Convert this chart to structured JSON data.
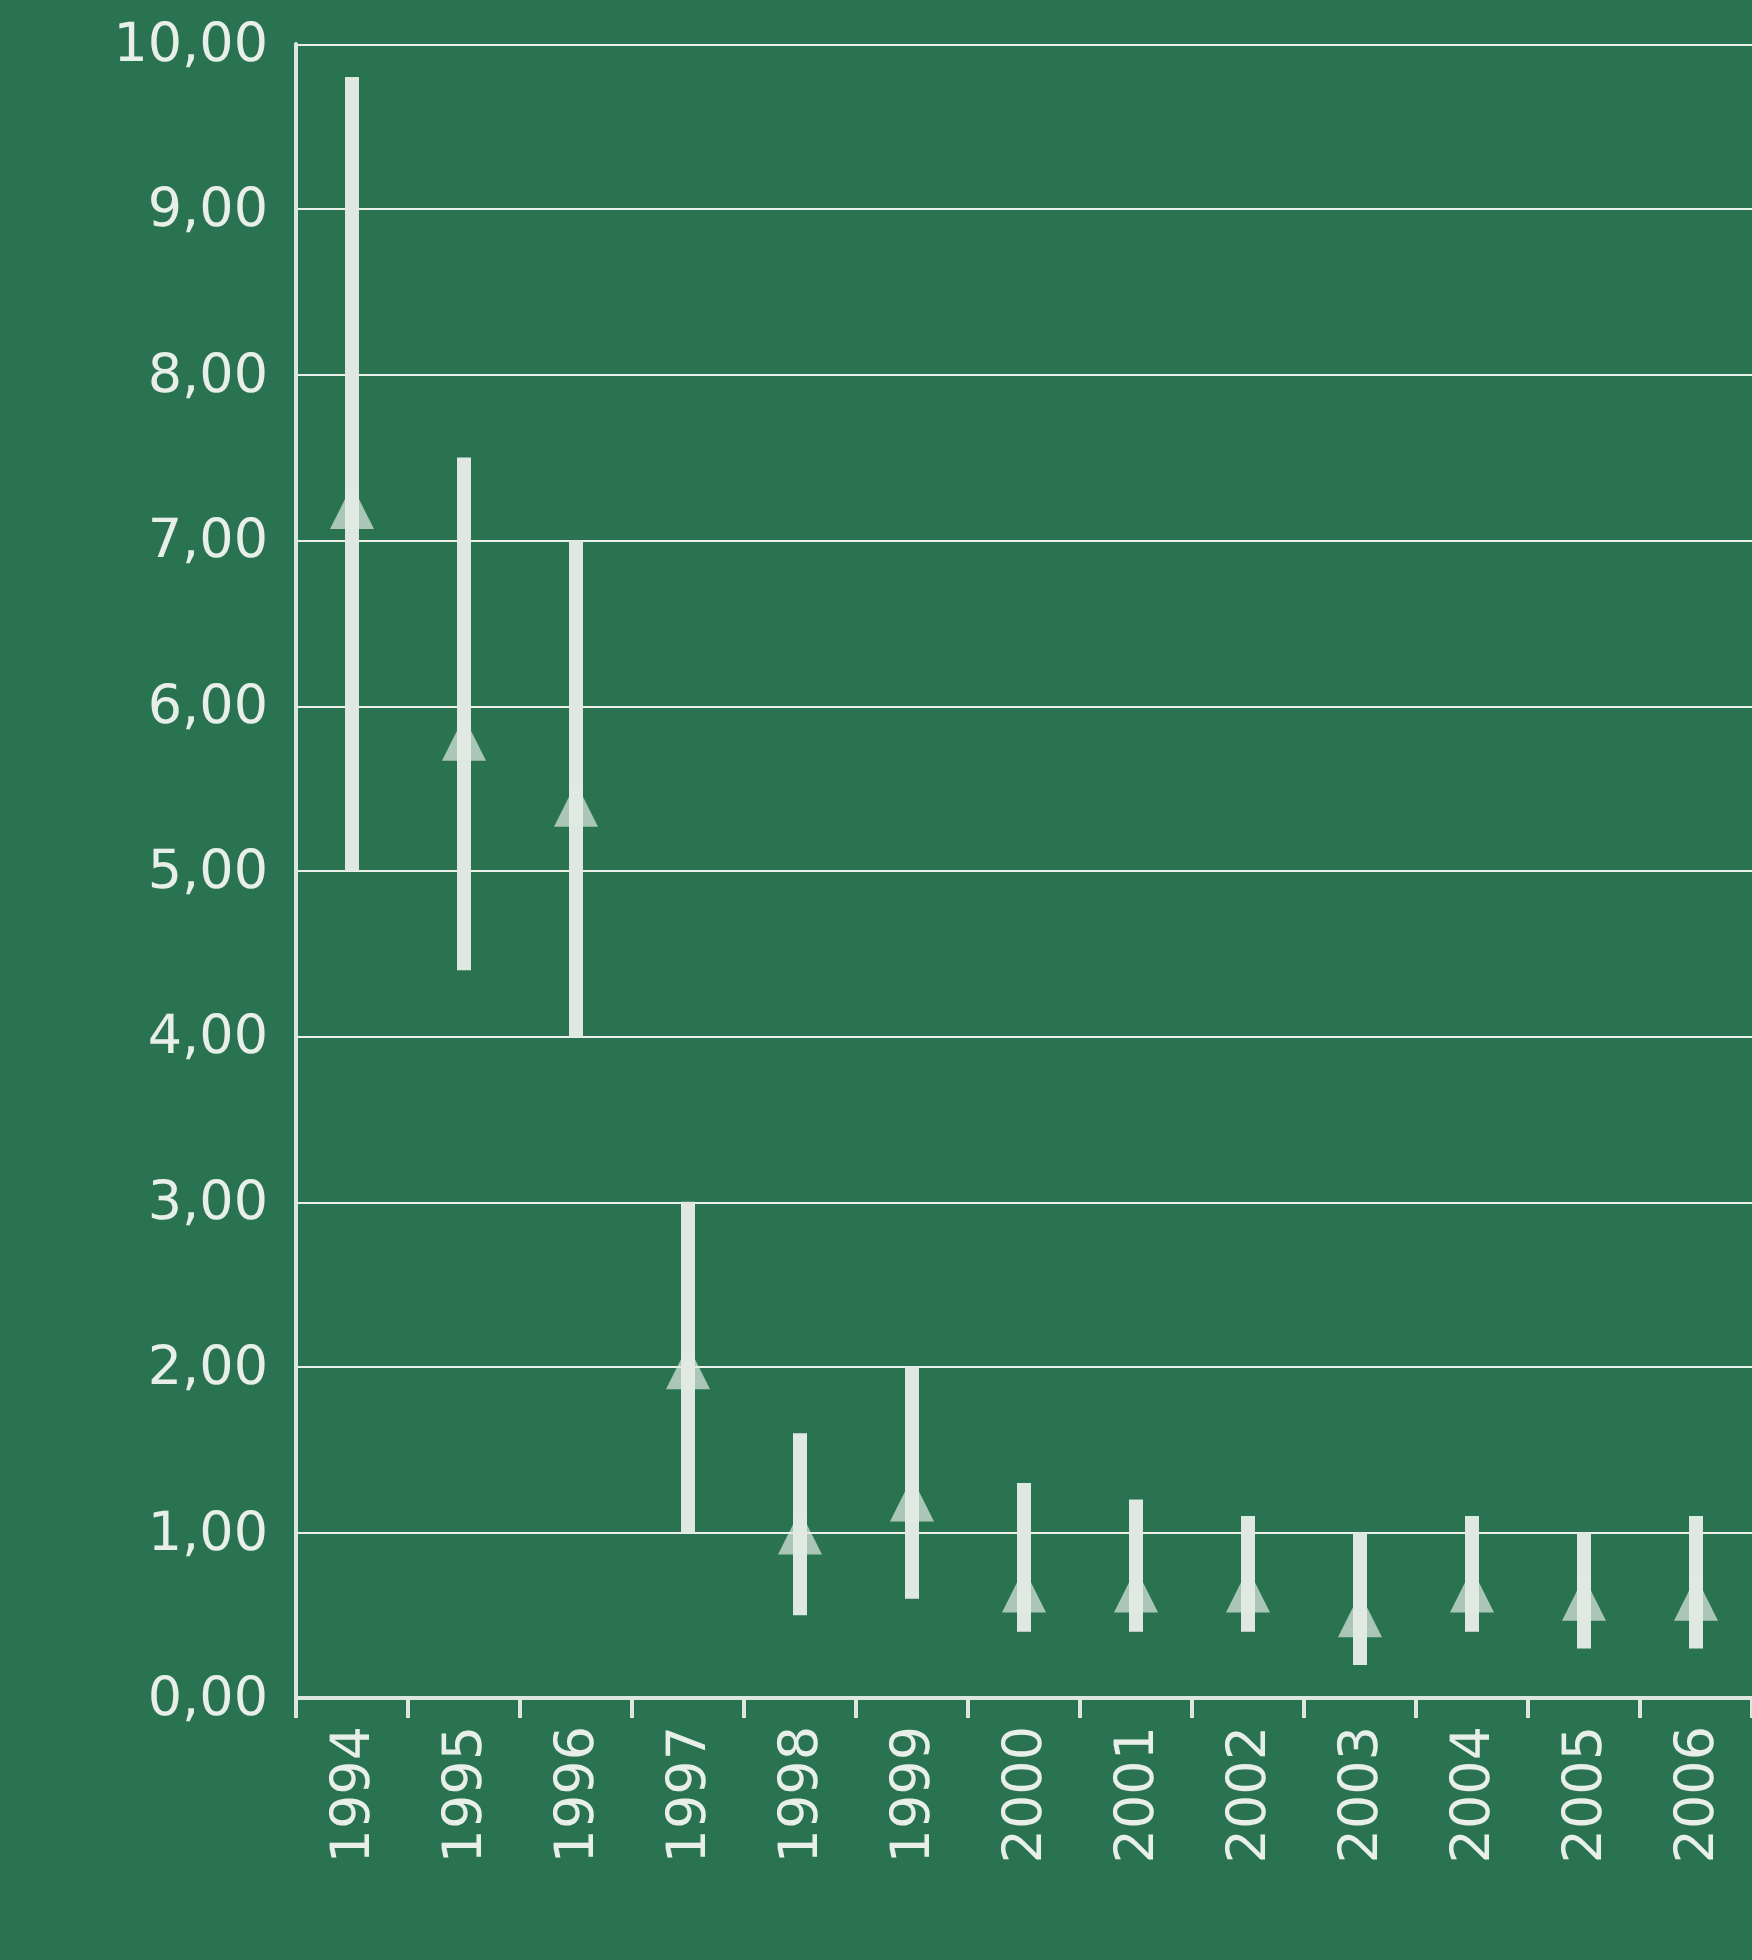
{
  "chart_data": {
    "type": "scatter",
    "categories": [
      "1994",
      "1995",
      "1996",
      "1997",
      "1998",
      "1999",
      "2000",
      "2001",
      "2002",
      "2003",
      "2004",
      "2005",
      "2006"
    ],
    "series": [
      {
        "color": "#dfe9e2",
        "values": [
          7.2,
          5.8,
          5.4,
          2.0,
          1.0,
          1.2,
          0.65,
          0.65,
          0.65,
          0.5,
          0.65,
          0.6,
          0.6
        ],
        "errors": [
          [
            5.0,
            9.8
          ],
          [
            4.4,
            7.5
          ],
          [
            4.0,
            7.0
          ],
          [
            1.0,
            3.0
          ],
          [
            0.5,
            1.6
          ],
          [
            0.6,
            2.0
          ],
          [
            0.4,
            1.3
          ],
          [
            0.4,
            1.2
          ],
          [
            0.4,
            1.1
          ],
          [
            0.2,
            1.0
          ],
          [
            0.4,
            1.1
          ],
          [
            0.3,
            1.0
          ],
          [
            0.3,
            1.1
          ]
        ]
      }
    ],
    "marker": "triangle",
    "ylim": [
      0,
      10
    ],
    "yticks": [
      {
        "value": 0,
        "label": "0,00"
      },
      {
        "value": 1,
        "label": "1,00"
      },
      {
        "value": 2,
        "label": "2,00"
      },
      {
        "value": 3,
        "label": "3,00"
      },
      {
        "value": 4,
        "label": "4,00"
      },
      {
        "value": 5,
        "label": "5,00"
      },
      {
        "value": 6,
        "label": "6,00"
      },
      {
        "value": 7,
        "label": "7,00"
      },
      {
        "value": 8,
        "label": "8,00"
      },
      {
        "value": 9,
        "label": "9,00"
      },
      {
        "value": 10,
        "label": "10,00"
      }
    ],
    "grid": "y"
  }
}
